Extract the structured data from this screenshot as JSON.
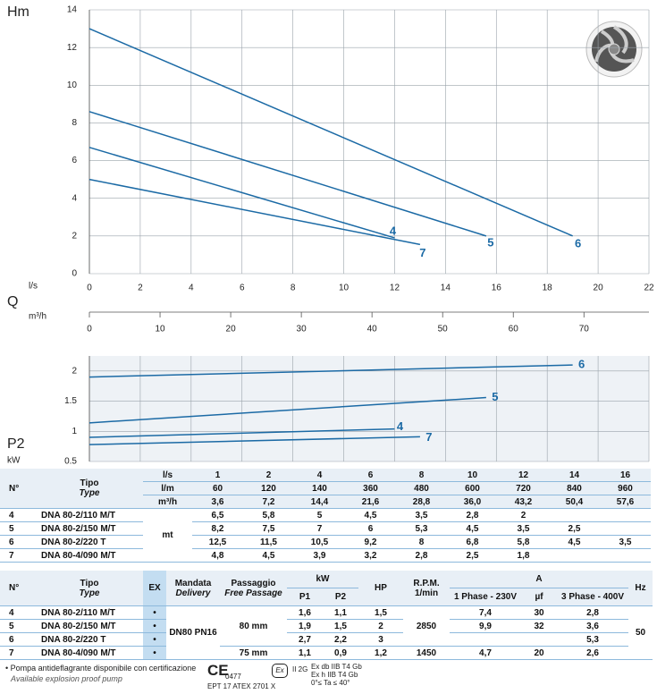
{
  "chart_data": [
    {
      "type": "line",
      "y_label": "Hm",
      "x_label": "l/s",
      "xlim": [
        0,
        22
      ],
      "xticks": [
        0,
        2,
        4,
        6,
        8,
        10,
        12,
        14,
        16,
        18,
        20,
        22
      ],
      "ylim": [
        0,
        14
      ],
      "yticks": [
        0,
        2,
        4,
        6,
        8,
        10,
        12,
        14
      ],
      "grid": true,
      "series": [
        {
          "name": "6",
          "color": "#1b6aa5",
          "x": [
            0,
            19
          ],
          "values": [
            13,
            2
          ]
        },
        {
          "name": "5",
          "color": "#1b6aa5",
          "x": [
            0,
            15.6
          ],
          "values": [
            8.6,
            2
          ]
        },
        {
          "name": "4",
          "color": "#1b6aa5",
          "x": [
            0,
            12
          ],
          "values": [
            6.7,
            1.9
          ]
        },
        {
          "name": "7",
          "color": "#1b6aa5",
          "x": [
            0,
            13
          ],
          "values": [
            5,
            1.55
          ]
        }
      ]
    },
    {
      "type": "axis",
      "q_label": "Q",
      "x_label": "m³/h",
      "xlim": [
        0,
        79.2
      ],
      "xticks": [
        0,
        10,
        20,
        30,
        40,
        50,
        60,
        70
      ]
    },
    {
      "type": "line",
      "y_label": "P2",
      "y_unit": "kW",
      "xlim": [
        0,
        22
      ],
      "ylim": [
        0.5,
        2.25
      ],
      "yticks": [
        0.5,
        1,
        1.5,
        2
      ],
      "grid": true,
      "series": [
        {
          "name": "6",
          "color": "#1b6aa5",
          "x": [
            0,
            19
          ],
          "values": [
            1.9,
            2.1
          ]
        },
        {
          "name": "5",
          "color": "#1b6aa5",
          "x": [
            0,
            15.6
          ],
          "values": [
            1.14,
            1.56
          ]
        },
        {
          "name": "4",
          "color": "#1b6aa5",
          "x": [
            0,
            12
          ],
          "values": [
            0.9,
            1.04
          ]
        },
        {
          "name": "7",
          "color": "#1b6aa5",
          "x": [
            0,
            13
          ],
          "values": [
            0.78,
            0.91
          ]
        }
      ]
    }
  ],
  "table1": {
    "no": "N°",
    "tipo": "Tipo",
    "type": "Type",
    "units": [
      "l/s",
      "l/m",
      "m³/h"
    ],
    "flow": [
      [
        "1",
        "2",
        "4",
        "6",
        "8",
        "10",
        "12",
        "14",
        "16"
      ],
      [
        "60",
        "120",
        "140",
        "360",
        "480",
        "600",
        "720",
        "840",
        "960"
      ],
      [
        "3,6",
        "7,2",
        "14,4",
        "21,6",
        "28,8",
        "36,0",
        "43,2",
        "50,4",
        "57,6"
      ]
    ],
    "unit": "mt",
    "rows": [
      {
        "no": "4",
        "model": "DNA 80-2/110 M/T",
        "heads": [
          "6,5",
          "5,8",
          "5",
          "4,5",
          "3,5",
          "2,8",
          "2"
        ]
      },
      {
        "no": "5",
        "model": "DNA 80-2/150 M/T",
        "heads": [
          "8,2",
          "7,5",
          "7",
          "6",
          "5,3",
          "4,5",
          "3,5",
          "2,5"
        ]
      },
      {
        "no": "6",
        "model": "DNA 80-2/220 T",
        "heads": [
          "12,5",
          "11,5",
          "10,5",
          "9,2",
          "8",
          "6,8",
          "5,8",
          "4,5",
          "3,5"
        ]
      },
      {
        "no": "7",
        "model": "DNA 80-4/090 M/T",
        "heads": [
          "4,8",
          "4,5",
          "3,9",
          "3,2",
          "2,8",
          "2,5",
          "1,8"
        ]
      }
    ]
  },
  "table2": {
    "header": {
      "no": "N°",
      "tipo": "Tipo",
      "type": "Type",
      "ex": "EX",
      "mandata": "Mandata",
      "delivery": "Delivery",
      "passaggio": "Passaggio",
      "free_passage": "Free Passage",
      "kw": "kW",
      "p1": "P1",
      "p2": "P2",
      "hp": "HP",
      "rpm": "R.P.M.",
      "rpm_unit": "1/min",
      "a": "A",
      "a1": "1 Phase - 230V",
      "uf": "µf",
      "a3": "3 Phase - 400V",
      "hz": "Hz"
    },
    "rows": [
      {
        "no": "4",
        "model": "DNA 80-2/110 M/T",
        "ex": "•",
        "delivery": "DN80 PN16",
        "passage": "80 mm",
        "p1": "1,6",
        "p2": "1,1",
        "hp": "1,5",
        "rpm": "2850",
        "a1": "7,4",
        "uf": "30",
        "a3": "2,8",
        "hz": "50"
      },
      {
        "no": "5",
        "model": "DNA 80-2/150 M/T",
        "ex": "•",
        "p1": "1,9",
        "p2": "1,5",
        "hp": "2",
        "a1": "9,9",
        "uf": "32",
        "a3": "3,6"
      },
      {
        "no": "6",
        "model": "DNA 80-2/220 T",
        "ex": "•",
        "p1": "2,7",
        "p2": "2,2",
        "hp": "3",
        "a3": "5,3"
      },
      {
        "no": "7",
        "model": "DNA 80-4/090 M/T",
        "ex": "•",
        "passage": "75 mm",
        "p1": "1,1",
        "p2": "0,9",
        "hp": "1,2",
        "rpm": "1450",
        "a1": "4,7",
        "uf": "20",
        "a3": "2,6"
      }
    ]
  },
  "footer": {
    "note": "• Pompa antideflagrante disponibile con certificazione",
    "note_en": "Available explosion proof pump",
    "ce": "CE",
    "ce_number": "0477",
    "atex": "EPT 17 ATEX 2701 X",
    "ex_mark": "Ex",
    "group": "II 2G",
    "marking": [
      "Ex db IIB T4 Gb",
      "Ex h IIB T4 Gb",
      "0°≤ Ta ≤ 40°"
    ]
  }
}
